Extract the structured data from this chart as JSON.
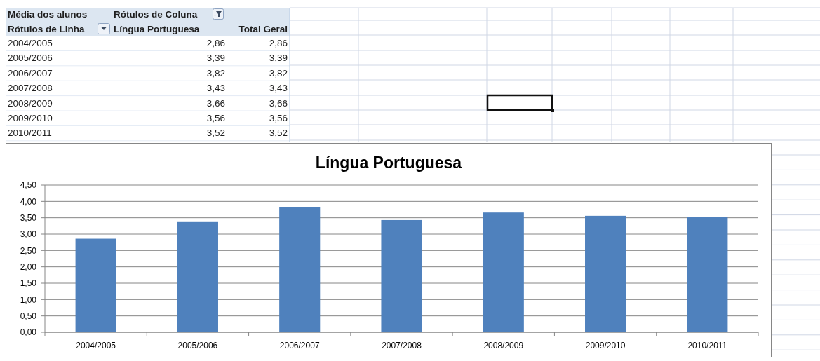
{
  "chart_data": [
    {
      "type": "other",
      "annotations": [
        "Média dos alunos",
        "Rótulos de Coluna",
        "Rótulos de Linha",
        "Língua Portuguesa",
        "Total Geral",
        "2004/2005",
        "2,86",
        "2,86",
        "2005/2006",
        "3,39",
        "3,39",
        "2006/2007",
        "3,82",
        "3,82",
        "2007/2008",
        "3,43",
        "3,43",
        "2008/2009",
        "3,66",
        "3,66",
        "2009/2010",
        "3,56",
        "3,56",
        "2010/2011",
        "3,52",
        "3,52"
      ]
    },
    {
      "type": "bar",
      "title": "Língua Portuguesa",
      "categories": [
        "2004/2005",
        "2005/2006",
        "2006/2007",
        "2007/2008",
        "2008/2009",
        "2009/2010",
        "2010/2011"
      ],
      "values": [
        2.86,
        3.39,
        3.82,
        3.43,
        3.66,
        3.56,
        3.52
      ],
      "color": "#4f81bd",
      "ylim": [
        0,
        4.5
      ],
      "yticks": [
        {
          "value": 0,
          "label": "0,00"
        },
        {
          "value": 0.5,
          "label": "0,50"
        },
        {
          "value": 1,
          "label": "1,00"
        },
        {
          "value": 1.5,
          "label": "1,50"
        },
        {
          "value": 2,
          "label": "2,00"
        },
        {
          "value": 2.5,
          "label": "2,50"
        },
        {
          "value": 3,
          "label": "3,00"
        },
        {
          "value": 3.5,
          "label": "3,50"
        },
        {
          "value": 4,
          "label": "4,00"
        },
        {
          "value": 4.5,
          "label": "4,50"
        }
      ],
      "grid": "y"
    }
  ]
}
